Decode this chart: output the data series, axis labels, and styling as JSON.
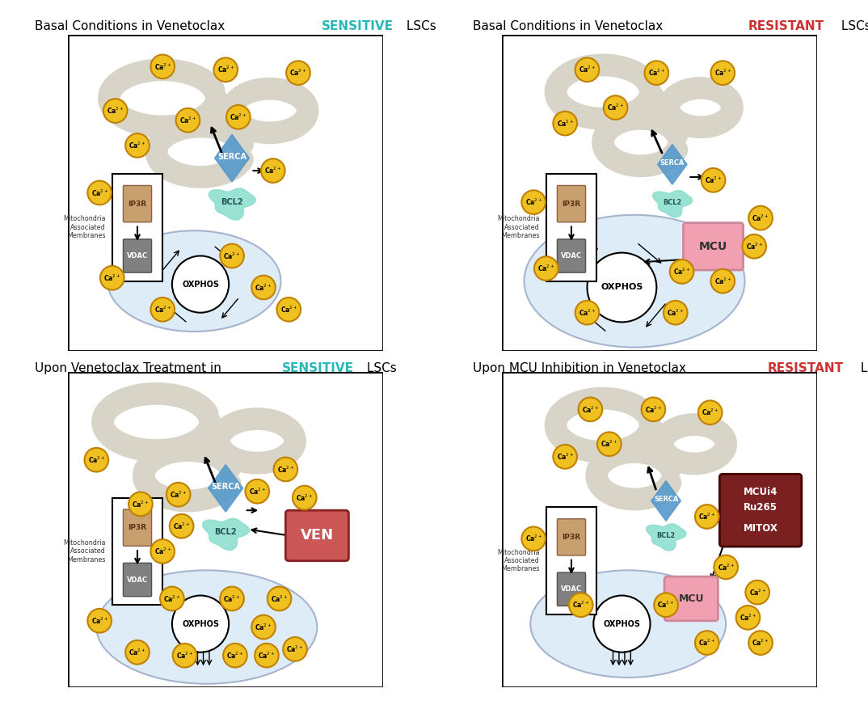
{
  "sensitive_color": "#2ab8b8",
  "resistant_color": "#cc3333",
  "background_color": "#ffffff",
  "er_color": "#d8d5c8",
  "mito_color": "#d0e4f5",
  "ca_color": "#f0c020",
  "ca_border": "#c08000",
  "serca_color": "#5599cc",
  "bcl2_color": "#88ddcc",
  "mcu_color": "#f0a0b0",
  "ven_color": "#cc5555",
  "inhibitor_color": "#7a2020",
  "ip3r_color": "#c8a070",
  "vdac_color": "#808080",
  "panel_titles": [
    [
      "Basal Conditions in Venetoclax ",
      "SENSITIVE",
      " LSCs"
    ],
    [
      "Basal Conditions in Venetoclax ",
      "RESISTANT",
      " LSCs"
    ],
    [
      "Upon Venetoclax Treatment in ",
      "SENSITIVE",
      " LSCs"
    ],
    [
      "Upon MCU Inhibition in Venetoclax ",
      "RESISTANT",
      " LSCs"
    ]
  ]
}
